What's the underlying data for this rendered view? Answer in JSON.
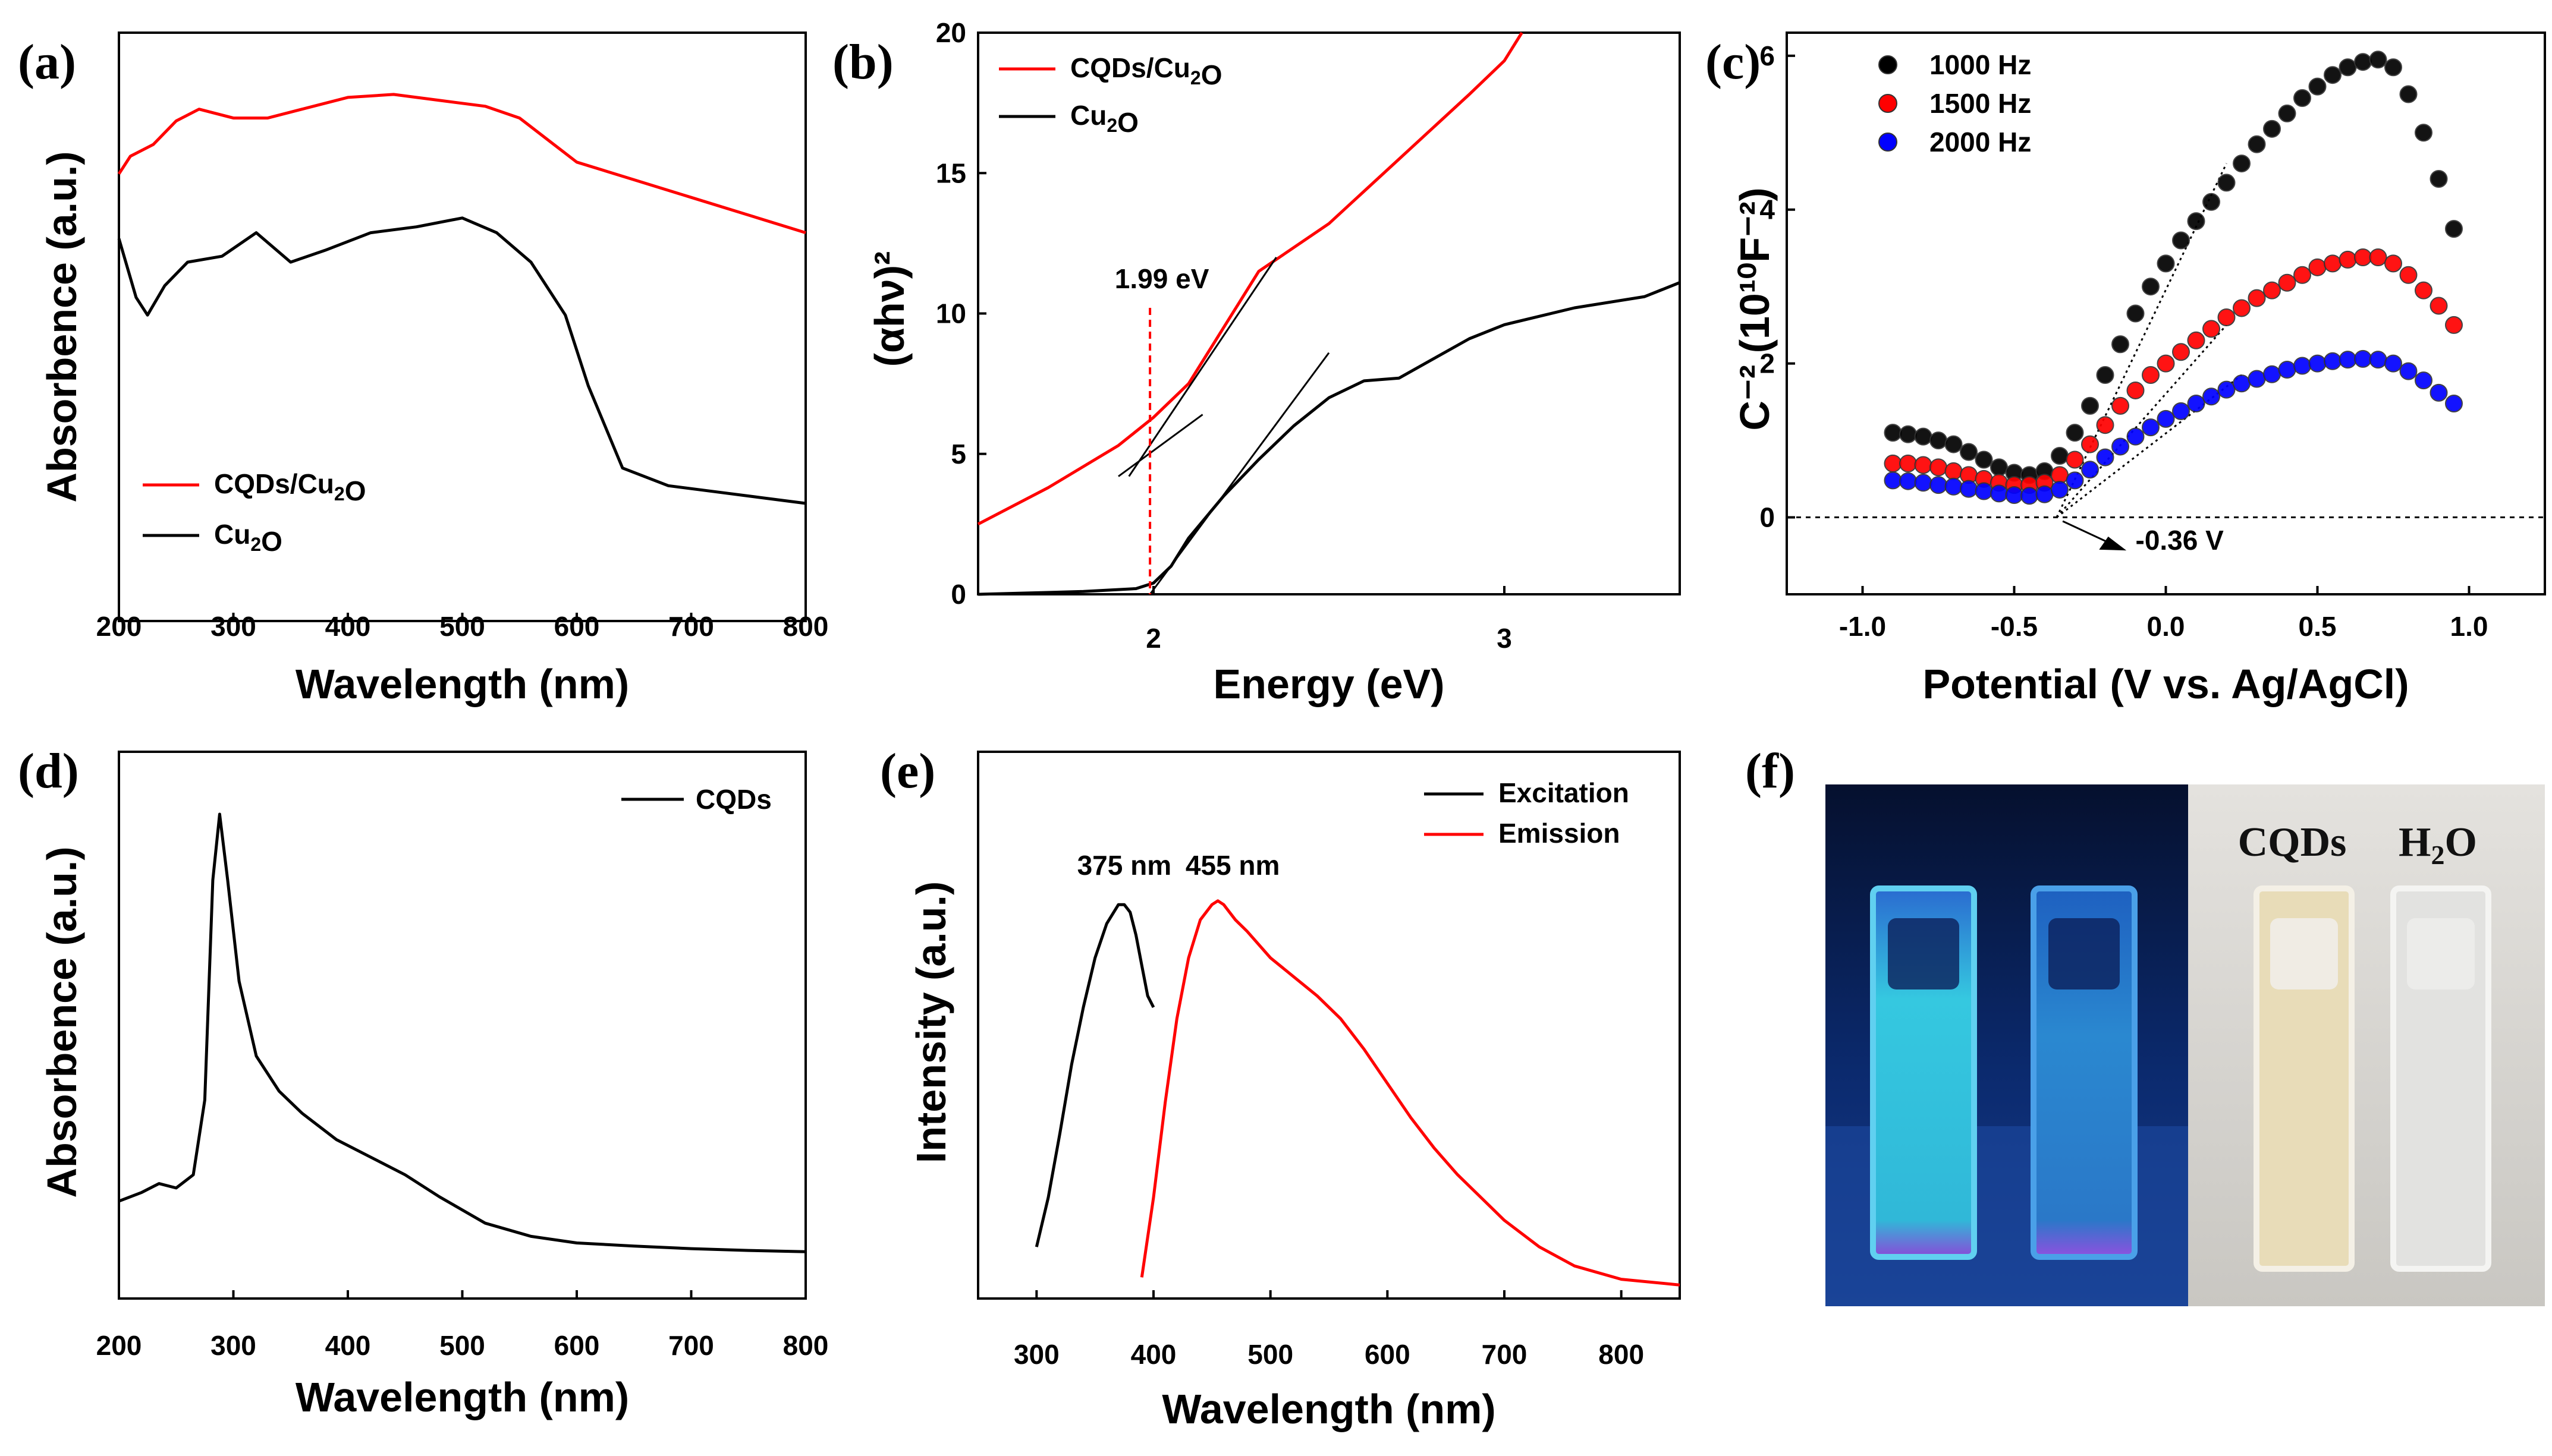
{
  "chart_data": [
    {
      "id": "a",
      "panel_label": "(a)",
      "type": "line",
      "xlabel": "Wavelength (nm)",
      "ylabel": "Absorbence (a.u.)",
      "xlim": [
        200,
        800
      ],
      "ylim": [
        0,
        1
      ],
      "xticks": [
        "200",
        "300",
        "400",
        "500",
        "600",
        "700",
        "800"
      ],
      "legend": [
        "CQDs/Cu2O",
        "Cu2O"
      ],
      "series": [
        {
          "name": "CQDs/Cu2O",
          "color": "#ff0000",
          "x": [
            200,
            210,
            230,
            250,
            270,
            300,
            330,
            360,
            400,
            440,
            480,
            520,
            550,
            580,
            600,
            650,
            700,
            750,
            800
          ],
          "y": [
            0.76,
            0.79,
            0.81,
            0.85,
            0.87,
            0.855,
            0.855,
            0.87,
            0.89,
            0.895,
            0.885,
            0.875,
            0.855,
            0.81,
            0.78,
            0.75,
            0.72,
            0.69,
            0.66
          ]
        },
        {
          "name": "Cu2O",
          "color": "#000000",
          "x": [
            200,
            215,
            225,
            240,
            260,
            290,
            320,
            350,
            380,
            420,
            460,
            500,
            530,
            560,
            590,
            610,
            640,
            680,
            720,
            760,
            800
          ],
          "y": [
            0.65,
            0.55,
            0.52,
            0.57,
            0.61,
            0.62,
            0.66,
            0.61,
            0.63,
            0.66,
            0.67,
            0.685,
            0.66,
            0.61,
            0.52,
            0.4,
            0.26,
            0.23,
            0.22,
            0.21,
            0.2
          ]
        }
      ]
    },
    {
      "id": "b",
      "panel_label": "(b)",
      "type": "line",
      "xlabel": "Energy (eV)",
      "ylabel": "(αhν)²",
      "xlim": [
        1.5,
        3.5
      ],
      "ylim": [
        0,
        20
      ],
      "xticks": [
        "2",
        "3"
      ],
      "yticks": [
        "0",
        "5",
        "10",
        "15",
        "20"
      ],
      "legend": [
        "CQDs/Cu2O",
        "Cu2O"
      ],
      "annotation": "1.99 eV",
      "bandgap_ev": 1.99,
      "series": [
        {
          "name": "CQDs/Cu2O",
          "color": "#ff0000",
          "x": [
            1.5,
            1.7,
            1.9,
            2.0,
            2.1,
            2.2,
            2.3,
            2.5,
            2.7,
            2.9,
            3.0,
            3.05
          ],
          "y": [
            2.5,
            3.8,
            5.3,
            6.3,
            7.5,
            9.5,
            11.5,
            13.2,
            15.5,
            17.8,
            19.0,
            20.0
          ]
        },
        {
          "name": "Cu2O",
          "color": "#000000",
          "x": [
            1.5,
            1.8,
            1.95,
            2.0,
            2.05,
            2.1,
            2.2,
            2.3,
            2.4,
            2.5,
            2.6,
            2.7,
            2.8,
            2.9,
            3.0,
            3.2,
            3.4,
            3.5
          ],
          "y": [
            0.0,
            0.1,
            0.2,
            0.4,
            1.0,
            2.0,
            3.5,
            4.8,
            6.0,
            7.0,
            7.6,
            7.7,
            8.4,
            9.1,
            9.6,
            10.2,
            10.6,
            11.1
          ]
        }
      ]
    },
    {
      "id": "c",
      "panel_label": "(c)",
      "type": "scatter",
      "xlabel": "Potential (V vs. Ag/AgCl)",
      "ylabel": "C⁻² (10¹⁰F⁻²)",
      "xlim": [
        -1.25,
        1.25
      ],
      "ylim": [
        -1,
        6.3
      ],
      "xticks": [
        "-1.0",
        "-0.5",
        "0.0",
        "0.5",
        "1.0"
      ],
      "yticks": [
        "0",
        "2",
        "4",
        "6"
      ],
      "annotation": "-0.36 V",
      "flat_band_v": -0.36,
      "legend": [
        "1000 Hz",
        "1500 Hz",
        "2000 Hz"
      ],
      "series": [
        {
          "name": "1000 Hz",
          "color": "#000000",
          "x": [
            -0.9,
            -0.85,
            -0.8,
            -0.75,
            -0.7,
            -0.65,
            -0.6,
            -0.55,
            -0.5,
            -0.45,
            -0.4,
            -0.35,
            -0.3,
            -0.25,
            -0.2,
            -0.15,
            -0.1,
            -0.05,
            0.0,
            0.05,
            0.1,
            0.15,
            0.2,
            0.25,
            0.3,
            0.35,
            0.4,
            0.45,
            0.5,
            0.55,
            0.6,
            0.65,
            0.7,
            0.75,
            0.8,
            0.85,
            0.9,
            0.95
          ],
          "y": [
            1.1,
            1.08,
            1.05,
            1.0,
            0.95,
            0.85,
            0.75,
            0.65,
            0.58,
            0.55,
            0.6,
            0.8,
            1.1,
            1.45,
            1.85,
            2.25,
            2.65,
            3.0,
            3.3,
            3.6,
            3.85,
            4.1,
            4.35,
            4.6,
            4.85,
            5.05,
            5.25,
            5.45,
            5.6,
            5.75,
            5.85,
            5.92,
            5.95,
            5.85,
            5.5,
            5.0,
            4.4,
            3.75
          ]
        },
        {
          "name": "1500 Hz",
          "color": "#ff0000",
          "x": [
            -0.9,
            -0.85,
            -0.8,
            -0.75,
            -0.7,
            -0.65,
            -0.6,
            -0.55,
            -0.5,
            -0.45,
            -0.4,
            -0.35,
            -0.3,
            -0.25,
            -0.2,
            -0.15,
            -0.1,
            -0.05,
            0.0,
            0.05,
            0.1,
            0.15,
            0.2,
            0.25,
            0.3,
            0.35,
            0.4,
            0.45,
            0.5,
            0.55,
            0.6,
            0.65,
            0.7,
            0.75,
            0.8,
            0.85,
            0.9,
            0.95
          ],
          "y": [
            0.7,
            0.7,
            0.68,
            0.65,
            0.6,
            0.55,
            0.5,
            0.45,
            0.42,
            0.42,
            0.45,
            0.55,
            0.75,
            0.95,
            1.2,
            1.45,
            1.65,
            1.85,
            2.0,
            2.15,
            2.3,
            2.45,
            2.6,
            2.72,
            2.85,
            2.95,
            3.05,
            3.15,
            3.25,
            3.3,
            3.35,
            3.38,
            3.38,
            3.3,
            3.15,
            2.95,
            2.75,
            2.5
          ]
        },
        {
          "name": "2000 Hz",
          "color": "#0000ff",
          "x": [
            -0.9,
            -0.85,
            -0.8,
            -0.75,
            -0.7,
            -0.65,
            -0.6,
            -0.55,
            -0.5,
            -0.45,
            -0.4,
            -0.35,
            -0.3,
            -0.25,
            -0.2,
            -0.15,
            -0.1,
            -0.05,
            0.0,
            0.05,
            0.1,
            0.15,
            0.2,
            0.25,
            0.3,
            0.35,
            0.4,
            0.45,
            0.5,
            0.55,
            0.6,
            0.65,
            0.7,
            0.75,
            0.8,
            0.85,
            0.9,
            0.95
          ],
          "y": [
            0.48,
            0.47,
            0.45,
            0.42,
            0.4,
            0.37,
            0.34,
            0.31,
            0.29,
            0.28,
            0.3,
            0.36,
            0.48,
            0.62,
            0.78,
            0.92,
            1.05,
            1.17,
            1.28,
            1.38,
            1.48,
            1.57,
            1.66,
            1.74,
            1.8,
            1.86,
            1.92,
            1.97,
            2.0,
            2.03,
            2.05,
            2.06,
            2.05,
            2.0,
            1.9,
            1.78,
            1.62,
            1.48
          ]
        }
      ]
    },
    {
      "id": "d",
      "panel_label": "(d)",
      "type": "line",
      "xlabel": "Wavelength (nm)",
      "ylabel": "Absorbence (a.u.)",
      "xlim": [
        200,
        800
      ],
      "ylim": [
        0,
        1
      ],
      "xticks": [
        "200",
        "300",
        "400",
        "500",
        "600",
        "700",
        "800"
      ],
      "legend": [
        "CQDs"
      ],
      "series": [
        {
          "name": "CQDs",
          "color": "#000000",
          "x": [
            200,
            220,
            235,
            250,
            265,
            275,
            282,
            288,
            295,
            305,
            320,
            340,
            360,
            390,
            420,
            450,
            480,
            520,
            560,
            600,
            650,
            700,
            750,
            800
          ],
          "y": [
            0.12,
            0.14,
            0.16,
            0.15,
            0.18,
            0.35,
            0.85,
            1.0,
            0.85,
            0.62,
            0.45,
            0.37,
            0.32,
            0.26,
            0.22,
            0.18,
            0.13,
            0.07,
            0.04,
            0.025,
            0.018,
            0.012,
            0.008,
            0.005
          ]
        }
      ]
    },
    {
      "id": "e",
      "panel_label": "(e)",
      "type": "line",
      "xlabel": "Wavelength (nm)",
      "ylabel": "Intensity (a.u.)",
      "xlim": [
        250,
        850
      ],
      "ylim": [
        0,
        1.2
      ],
      "xticks": [
        "300",
        "400",
        "500",
        "600",
        "700",
        "800"
      ],
      "legend": [
        "Excitation",
        "Emission"
      ],
      "annotations": [
        "375 nm",
        "455 nm"
      ],
      "series": [
        {
          "name": "Excitation",
          "color": "#000000",
          "x": [
            300,
            310,
            320,
            330,
            340,
            350,
            360,
            370,
            375,
            380,
            385,
            390,
            395,
            400
          ],
          "y": [
            0.12,
            0.25,
            0.42,
            0.6,
            0.75,
            0.88,
            0.97,
            1.02,
            1.02,
            1.0,
            0.94,
            0.86,
            0.78,
            0.75
          ]
        },
        {
          "name": "Emission",
          "color": "#ff0000",
          "x": [
            390,
            400,
            410,
            420,
            430,
            440,
            450,
            455,
            460,
            470,
            480,
            500,
            520,
            540,
            560,
            580,
            600,
            620,
            640,
            660,
            680,
            700,
            730,
            760,
            800,
            850
          ],
          "y": [
            0.04,
            0.25,
            0.5,
            0.72,
            0.88,
            0.98,
            1.02,
            1.03,
            1.02,
            0.98,
            0.95,
            0.88,
            0.83,
            0.78,
            0.72,
            0.64,
            0.55,
            0.46,
            0.38,
            0.31,
            0.25,
            0.19,
            0.12,
            0.07,
            0.035,
            0.02
          ]
        }
      ]
    }
  ],
  "panel_f": {
    "panel_label": "(f)",
    "photo_labels": [
      "CQDs",
      "H2O"
    ],
    "colors": {
      "uv_bg": "#0a1640",
      "glow": "#2ed0e8",
      "right_bg": "#d8d6d0",
      "cqd_liquid": "#e8dcb8"
    }
  }
}
